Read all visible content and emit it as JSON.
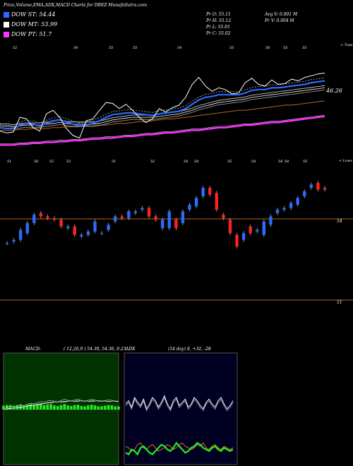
{
  "header": {
    "title": "Price,Volume,EMA,ADX,MACD Charts for DBEZ MunafaSutra.com"
  },
  "legend": [
    {
      "label": "DOW ST: 54.44",
      "color": "#2b6bff"
    },
    {
      "label": "DOW MT: 53.99",
      "color": "#ffffff"
    },
    {
      "label": "DOW PT: 51.7",
      "color": "#ff33ff"
    }
  ],
  "info": {
    "pr_o": "Pr  O: 55.11",
    "pr_h": "Pr  H: 55.12",
    "pr_l": "Pr  L: 55.01",
    "pr_c": "Pr  C: 55.02",
    "avg_v": "Avg V: 0.001 M",
    "pr_v": "Pr  V: 0.004  M"
  },
  "panels": {
    "top_label": "< Tops",
    "lows_label": "< Lows",
    "price_right": "46.26",
    "level_54": "54",
    "level_51": "51",
    "macd_label": "MACD:",
    "macd_values": "( 12,26,9 ) 54.39, 54.36, 0.23",
    "adx_label": "ADX",
    "adx_values": "(14  day) 8, +32, -28"
  },
  "chart_data": [
    {
      "type": "line",
      "name": "price-ema",
      "top_labels": [
        "52",
        "54",
        "55",
        "55",
        "54",
        "55",
        "56",
        "55",
        "55"
      ],
      "bottom_labels": [
        "51",
        "50",
        "52",
        "53",
        "51",
        "52",
        "54",
        "54",
        "55",
        "54",
        "54",
        "54",
        "55"
      ],
      "close": [
        49.2,
        49.0,
        49.1,
        50.8,
        50.6,
        49.6,
        49.2,
        51.2,
        51.6,
        50.8,
        49.5,
        48.7,
        48.4,
        50.4,
        50.6,
        51.6,
        52.5,
        52.4,
        51.8,
        52.3,
        51.6,
        50.8,
        50.2,
        50.6,
        51.8,
        51.4,
        51.9,
        52.2,
        53.1,
        54.6,
        55.4,
        54.4,
        53.8,
        54.2,
        54.0,
        53.5,
        53.6,
        54.8,
        55.3,
        54.6,
        54.4,
        55.1,
        54.6,
        54.7,
        55.2,
        55.0,
        55.4,
        55.6,
        55.8,
        55.9
      ],
      "ema_short": [
        49.6,
        49.5,
        49.5,
        49.9,
        50.1,
        50.0,
        49.8,
        50.1,
        50.4,
        50.5,
        50.3,
        50.0,
        49.8,
        49.9,
        50.1,
        50.4,
        50.8,
        51.1,
        51.2,
        51.3,
        51.3,
        51.2,
        51.1,
        51.0,
        51.2,
        51.3,
        51.4,
        51.5,
        51.8,
        52.3,
        52.8,
        53.1,
        53.2,
        53.4,
        53.4,
        53.4,
        53.4,
        53.6,
        53.9,
        54.0,
        54.0,
        54.2,
        54.2,
        54.3,
        54.4,
        54.5,
        54.6,
        54.8,
        54.9,
        55.0
      ],
      "ema_mid": [
        49.8,
        49.8,
        49.7,
        49.8,
        49.9,
        49.9,
        49.9,
        50.0,
        50.1,
        50.2,
        50.1,
        50.0,
        50.0,
        50.0,
        50.0,
        50.1,
        50.3,
        50.5,
        50.6,
        50.7,
        50.8,
        50.8,
        50.8,
        50.8,
        50.9,
        51.0,
        51.1,
        51.2,
        51.4,
        51.6,
        51.9,
        52.1,
        52.3,
        52.5,
        52.6,
        52.7,
        52.8,
        52.9,
        53.1,
        53.2,
        53.3,
        53.4,
        53.5,
        53.6,
        53.7,
        53.8,
        53.9,
        54.0,
        54.1,
        54.2
      ],
      "ema_long": [
        49.3,
        49.3,
        49.3,
        49.4,
        49.4,
        49.5,
        49.5,
        49.5,
        49.6,
        49.6,
        49.7,
        49.7,
        49.7,
        49.8,
        49.8,
        49.9,
        49.9,
        50.0,
        50.1,
        50.1,
        50.2,
        50.3,
        50.3,
        50.4,
        50.5,
        50.6,
        50.6,
        50.7,
        50.8,
        50.9,
        51.0,
        51.1,
        51.2,
        51.3,
        51.4,
        51.5,
        51.6,
        51.6,
        51.7,
        51.8,
        51.9,
        52.0,
        52.1,
        52.2,
        52.2,
        52.3,
        52.4,
        52.5,
        52.6,
        52.7
      ],
      "ema_pt": [
        47.6,
        47.6,
        47.6,
        47.7,
        47.7,
        47.8,
        47.8,
        47.9,
        47.9,
        48.0,
        48.0,
        48.1,
        48.1,
        48.2,
        48.3,
        48.3,
        48.4,
        48.4,
        48.5,
        48.6,
        48.6,
        48.7,
        48.8,
        48.8,
        48.9,
        49.0,
        49.0,
        49.1,
        49.2,
        49.3,
        49.3,
        49.4,
        49.5,
        49.6,
        49.6,
        49.7,
        49.8,
        49.9,
        49.9,
        50.0,
        50.1,
        50.2,
        50.2,
        50.3,
        50.4,
        50.5,
        50.6,
        50.7,
        50.8,
        50.9
      ]
    },
    {
      "type": "candlestick",
      "name": "ohlc",
      "open": [
        53.6,
        53.7,
        53.8,
        54.2,
        54.8,
        55.4,
        55.2,
        55.1,
        55.0,
        54.5,
        54.6,
        54.0,
        54.1,
        54.3,
        54.2,
        54.4,
        54.9,
        55.2,
        55.1,
        55.4,
        55.6,
        55.7,
        55.2,
        54.5,
        54.5,
        55.0,
        54.8,
        55.6,
        55.8,
        56.4,
        56.9,
        56.6,
        55.3,
        55.0,
        54.1,
        53.8,
        54.6,
        54.3,
        54.1,
        54.7,
        55.4,
        55.6,
        55.7,
        55.9,
        56.4,
        56.9,
        57.2,
        56.9
      ],
      "close": [
        53.6,
        53.8,
        54.4,
        54.8,
        55.3,
        55.2,
        55.1,
        55.0,
        54.6,
        54.6,
        54.1,
        54.1,
        54.3,
        54.9,
        54.2,
        54.7,
        55.2,
        55.1,
        55.5,
        55.5,
        55.7,
        55.2,
        55.0,
        55.0,
        55.5,
        54.5,
        55.5,
        55.9,
        56.3,
        56.9,
        56.5,
        55.6,
        55.1,
        54.2,
        53.4,
        54.2,
        54.2,
        54.4,
        54.9,
        55.2,
        55.6,
        55.7,
        56.0,
        56.3,
        56.7,
        57.1,
        56.8,
        56.8
      ]
    },
    {
      "type": "line",
      "name": "macd",
      "macd": [
        0.0,
        0.04,
        0.06,
        0.05,
        0.08,
        0.12,
        0.1,
        0.14,
        0.18,
        0.16,
        0.2,
        0.23,
        0.21,
        0.25,
        0.27,
        0.24,
        0.22,
        0.26,
        0.3,
        0.27,
        0.25,
        0.28,
        0.3,
        0.26,
        0.24,
        0.27,
        0.3,
        0.28,
        0.25,
        0.24,
        0.26,
        0.28,
        0.27,
        0.24,
        0.23
      ],
      "signal": [
        0.0,
        0.02,
        0.04,
        0.05,
        0.06,
        0.08,
        0.09,
        0.11,
        0.13,
        0.14,
        0.16,
        0.18,
        0.19,
        0.21,
        0.22,
        0.23,
        0.23,
        0.24,
        0.25,
        0.26,
        0.26,
        0.26,
        0.27,
        0.27,
        0.26,
        0.26,
        0.27,
        0.27,
        0.27,
        0.26,
        0.26,
        0.26,
        0.26,
        0.26,
        0.25
      ]
    },
    {
      "type": "line",
      "name": "adx",
      "adx": [
        36,
        38,
        34,
        40,
        37,
        35,
        39,
        33,
        36,
        40,
        38,
        34,
        37,
        41,
        36,
        33,
        38,
        40,
        35,
        37,
        39,
        34,
        36,
        40,
        38,
        35,
        33,
        37,
        39,
        36,
        34,
        38,
        40,
        36,
        33,
        35,
        38
      ],
      "plus_di": [
        6,
        5,
        8,
        7,
        5,
        9,
        10,
        8,
        6,
        5,
        7,
        9,
        11,
        10,
        8,
        7,
        9,
        12,
        10,
        8,
        6,
        7,
        9,
        10,
        12,
        11,
        9,
        8,
        7,
        9,
        10,
        8,
        7,
        9,
        8,
        7,
        8
      ],
      "minus_di": [
        10,
        9,
        7,
        8,
        11,
        12,
        9,
        8,
        10,
        11,
        9,
        7,
        8,
        9,
        11,
        10,
        8,
        9,
        11,
        12,
        10,
        9,
        8,
        9,
        11,
        10,
        12,
        9,
        8,
        10,
        11,
        9,
        8,
        10,
        9,
        8,
        9
      ]
    }
  ]
}
